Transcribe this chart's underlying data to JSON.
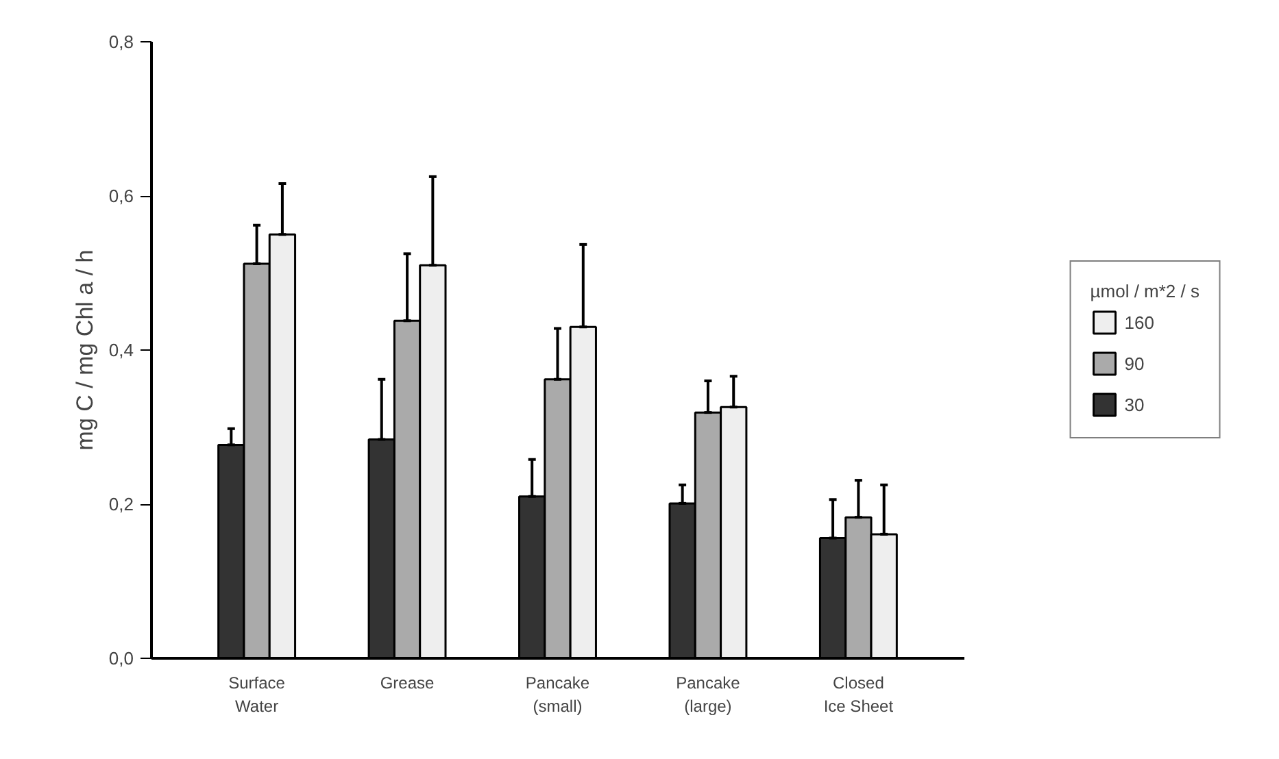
{
  "chart_data": {
    "type": "bar",
    "ylabel": "mg C / mg Chl a / h",
    "legend_title": "µmol / m*2 / s",
    "categories": [
      "Surface Water",
      "Grease",
      "Pancake (small)",
      "Pancake (large)",
      "Closed Ice Sheet"
    ],
    "series": [
      {
        "name": "30",
        "color": "#333333",
        "values": [
          0.277,
          0.284,
          0.21,
          0.201,
          0.156
        ],
        "errors": [
          [
            0.277,
            0.298
          ],
          [
            0.284,
            0.362
          ],
          [
            0.21,
            0.258
          ],
          [
            0.201,
            0.225
          ],
          [
            0.156,
            0.206
          ]
        ]
      },
      {
        "name": "90",
        "color": "#aaaaaa",
        "values": [
          0.512,
          0.438,
          0.362,
          0.319,
          0.183
        ],
        "errors": [
          [
            0.512,
            0.562
          ],
          [
            0.438,
            0.525
          ],
          [
            0.362,
            0.428
          ],
          [
            0.319,
            0.36
          ],
          [
            0.183,
            0.231
          ]
        ]
      },
      {
        "name": "160",
        "color": "#eeeeee",
        "values": [
          0.55,
          0.51,
          0.43,
          0.326,
          0.161
        ],
        "errors": [
          [
            0.55,
            0.616
          ],
          [
            0.51,
            0.625
          ],
          [
            0.43,
            0.537
          ],
          [
            0.326,
            0.366
          ],
          [
            0.161,
            0.225
          ]
        ]
      }
    ],
    "ylim": [
      0,
      0.8
    ],
    "yticks": [
      {
        "value": 0,
        "label": "0,0"
      },
      {
        "value": 0.2,
        "label": "0,2"
      },
      {
        "value": 0.4,
        "label": "0,4"
      },
      {
        "value": 0.6,
        "label": "0,6"
      },
      {
        "value": 0.8,
        "label": "0,8"
      }
    ],
    "grid": false,
    "legend": "right"
  }
}
